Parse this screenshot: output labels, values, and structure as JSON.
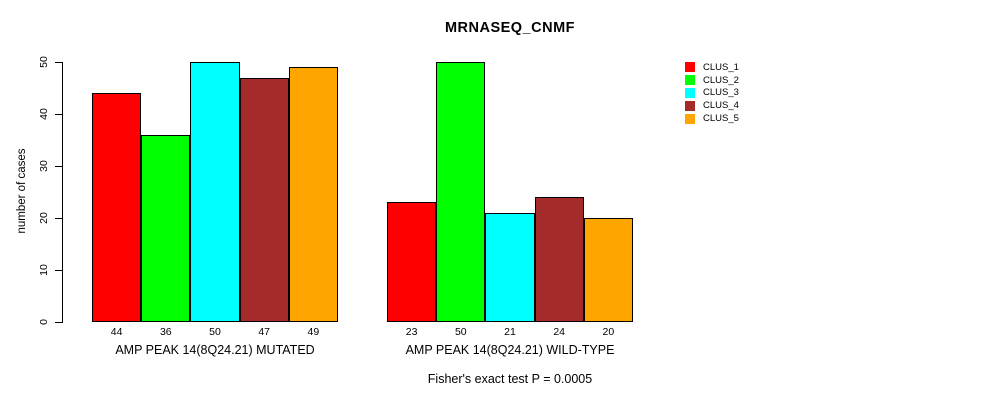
{
  "chart_data": {
    "type": "bar",
    "title": "MRNASEQ_CNMF",
    "ylabel": "number of cases",
    "xlabel": "",
    "ylim": [
      0,
      50
    ],
    "yticks": [
      0,
      10,
      20,
      30,
      40,
      50
    ],
    "grid": false,
    "legend_position": "right-outside",
    "categories": [
      "AMP PEAK 14(8Q24.21) MUTATED",
      "AMP PEAK 14(8Q24.21) WILD-TYPE"
    ],
    "series": [
      {
        "name": "CLUS_1",
        "color": "#FF0000",
        "values": [
          44,
          23
        ]
      },
      {
        "name": "CLUS_2",
        "color": "#00FF00",
        "values": [
          36,
          50
        ]
      },
      {
        "name": "CLUS_3",
        "color": "#00FFFF",
        "values": [
          50,
          21
        ]
      },
      {
        "name": "CLUS_4",
        "color": "#A52A2A",
        "values": [
          47,
          24
        ]
      },
      {
        "name": "CLUS_5",
        "color": "#FFA500",
        "values": [
          49,
          20
        ]
      }
    ],
    "bar_value_labels": [
      [
        44,
        36,
        50,
        47,
        49
      ],
      [
        23,
        50,
        21,
        24,
        20
      ]
    ],
    "annotation": "Fisher's exact test P = 0.0005",
    "bar_border_color": "#000000",
    "axis_color": "#000000"
  }
}
